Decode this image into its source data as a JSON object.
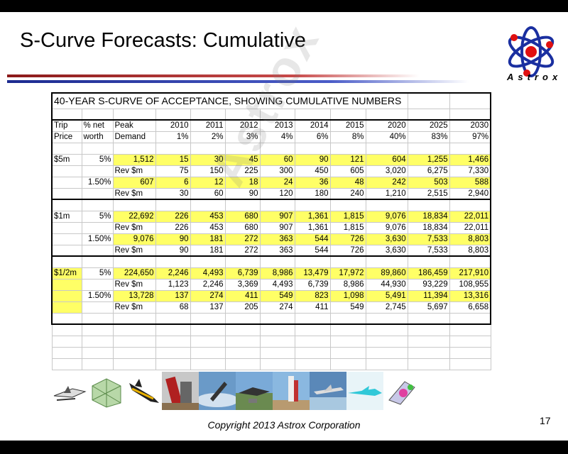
{
  "slide": {
    "title": "S-Curve Forecasts: Cumulative",
    "logo_text": "Astrox",
    "copyright": "Copyright 2013 Astrox Corporation",
    "page_number": "17",
    "watermark": "Astrox"
  },
  "table": {
    "banner": "40-YEAR S-CURVE OF ACCEPTANCE, SHOWING CUMULATIVE NUMBERS",
    "header1": [
      "Trip",
      "% net",
      "Peak",
      "2010",
      "2011",
      "2012",
      "2013",
      "2014",
      "2015",
      "2020",
      "2025",
      "2030"
    ],
    "header2": [
      "Price",
      "worth",
      "Demand",
      "1%",
      "2%",
      "3%",
      "4%",
      "6%",
      "8%",
      "40%",
      "83%",
      "97%"
    ],
    "groups": [
      {
        "price": "$5m",
        "rows": [
          {
            "pct": "5%",
            "peak": "1,512",
            "values": [
              "15",
              "30",
              "45",
              "60",
              "90",
              "121",
              "604",
              "1,255",
              "1,466"
            ]
          },
          {
            "pct": "",
            "peak": "Rev $m",
            "values": [
              "75",
              "150",
              "225",
              "300",
              "450",
              "605",
              "3,020",
              "6,275",
              "7,330"
            ]
          },
          {
            "pct": "1.50%",
            "peak": "607",
            "values": [
              "6",
              "12",
              "18",
              "24",
              "36",
              "48",
              "242",
              "503",
              "588"
            ]
          },
          {
            "pct": "",
            "peak": "Rev $m",
            "values": [
              "30",
              "60",
              "90",
              "120",
              "180",
              "240",
              "1,210",
              "2,515",
              "2,940"
            ]
          }
        ]
      },
      {
        "price": "$1m",
        "rows": [
          {
            "pct": "5%",
            "peak": "22,692",
            "values": [
              "226",
              "453",
              "680",
              "907",
              "1,361",
              "1,815",
              "9,076",
              "18,834",
              "22,011"
            ]
          },
          {
            "pct": "",
            "peak": "Rev $m",
            "values": [
              "226",
              "453",
              "680",
              "907",
              "1,361",
              "1,815",
              "9,076",
              "18,834",
              "22,011"
            ]
          },
          {
            "pct": "1.50%",
            "peak": "9,076",
            "values": [
              "90",
              "181",
              "272",
              "363",
              "544",
              "726",
              "3,630",
              "7,533",
              "8,803"
            ]
          },
          {
            "pct": "",
            "peak": "Rev $m",
            "values": [
              "90",
              "181",
              "272",
              "363",
              "544",
              "726",
              "3,630",
              "7,533",
              "8,803"
            ]
          }
        ]
      },
      {
        "price": "$1/2m",
        "rows": [
          {
            "pct": "5%",
            "peak": "224,650",
            "values": [
              "2,246",
              "4,493",
              "6,739",
              "8,986",
              "13,479",
              "17,972",
              "89,860",
              "186,459",
              "217,910"
            ]
          },
          {
            "pct": "",
            "peak": "Rev $m",
            "values": [
              "1,123",
              "2,246",
              "3,369",
              "4,493",
              "6,739",
              "8,986",
              "44,930",
              "93,229",
              "108,955"
            ]
          },
          {
            "pct": "1.50%",
            "peak": "13,728",
            "values": [
              "137",
              "274",
              "411",
              "549",
              "823",
              "1,098",
              "5,491",
              "11,394",
              "13,316"
            ]
          },
          {
            "pct": "",
            "peak": "Rev $m",
            "values": [
              "68",
              "137",
              "205",
              "274",
              "411",
              "549",
              "2,745",
              "5,697",
              "6,658"
            ]
          }
        ]
      }
    ]
  },
  "thumbnails": [
    "spaceplane-icon",
    "lattice-icon",
    "shuttle-icon",
    "launch-vehicle-icon",
    "rocket-sky-icon",
    "launch-complex-icon",
    "launch-pad-icon",
    "aircraft-icon",
    "hypersonic-jet-icon",
    "capsule-icon"
  ]
}
